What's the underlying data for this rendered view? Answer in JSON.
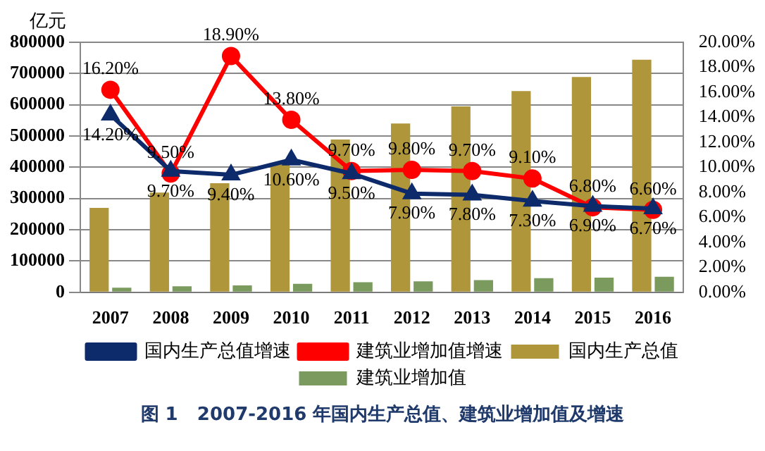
{
  "chart_data": {
    "type": "bar",
    "title": "图 1   2007-2016 年国内生产总值、建筑业增加值及增速",
    "ylabel": "亿元",
    "categories": [
      "2007",
      "2008",
      "2009",
      "2010",
      "2011",
      "2012",
      "2013",
      "2014",
      "2015",
      "2016"
    ],
    "series": [
      {
        "name": "国内生产总值",
        "color": "#b0963a",
        "values": [
          270000,
          319000,
          349000,
          413000,
          489000,
          540000,
          595000,
          644000,
          689000,
          744000
        ]
      },
      {
        "name": "建筑业增加值",
        "color": "#7a9a5e",
        "values": [
          15000,
          19000,
          22000,
          27000,
          32000,
          35000,
          39000,
          45000,
          47000,
          50000
        ]
      },
      {
        "name": "国内生产总值增速",
        "type": "line",
        "axis": "y2",
        "color": "#0d2a6b",
        "marker": "triangle",
        "values": [
          14.2,
          9.7,
          9.4,
          10.6,
          9.5,
          7.9,
          7.8,
          7.3,
          6.9,
          6.7
        ],
        "value_labels": [
          "14.20%",
          "9.70%",
          "9.40%",
          "10.60%",
          "9.50%",
          "7.90%",
          "7.80%",
          "7.30%",
          "6.90%",
          "6.70%"
        ]
      },
      {
        "name": "建筑业增加值增速",
        "type": "line",
        "axis": "y2",
        "color": "#ff0000",
        "marker": "circle",
        "values": [
          16.2,
          9.5,
          18.9,
          13.8,
          9.7,
          9.8,
          9.7,
          9.1,
          6.8,
          6.6
        ],
        "value_labels": [
          "16.20%",
          "9.50%",
          "18.90%",
          "13.80%",
          "9.70%",
          "9.80%",
          "9.70%",
          "9.10%",
          "6.80%",
          "6.60%"
        ]
      }
    ],
    "ylim": [
      0,
      800000
    ],
    "yticks": [
      0,
      100000,
      200000,
      300000,
      400000,
      500000,
      600000,
      700000,
      800000
    ],
    "y2lim": [
      0,
      20
    ],
    "y2ticks": [
      {
        "value": 0,
        "label": "0.00%"
      },
      {
        "value": 2,
        "label": "2.00%"
      },
      {
        "value": 4,
        "label": "4.00%"
      },
      {
        "value": 6,
        "label": "6.00%"
      },
      {
        "value": 8,
        "label": "8.00%"
      },
      {
        "value": 10,
        "label": "10.00%"
      },
      {
        "value": 12,
        "label": "12.00%"
      },
      {
        "value": 14,
        "label": "14.00%"
      },
      {
        "value": 16,
        "label": "16.00%"
      },
      {
        "value": 18,
        "label": "18.00%"
      },
      {
        "value": 20,
        "label": "20.00%"
      }
    ],
    "grid": "y",
    "legend": "bottom"
  }
}
